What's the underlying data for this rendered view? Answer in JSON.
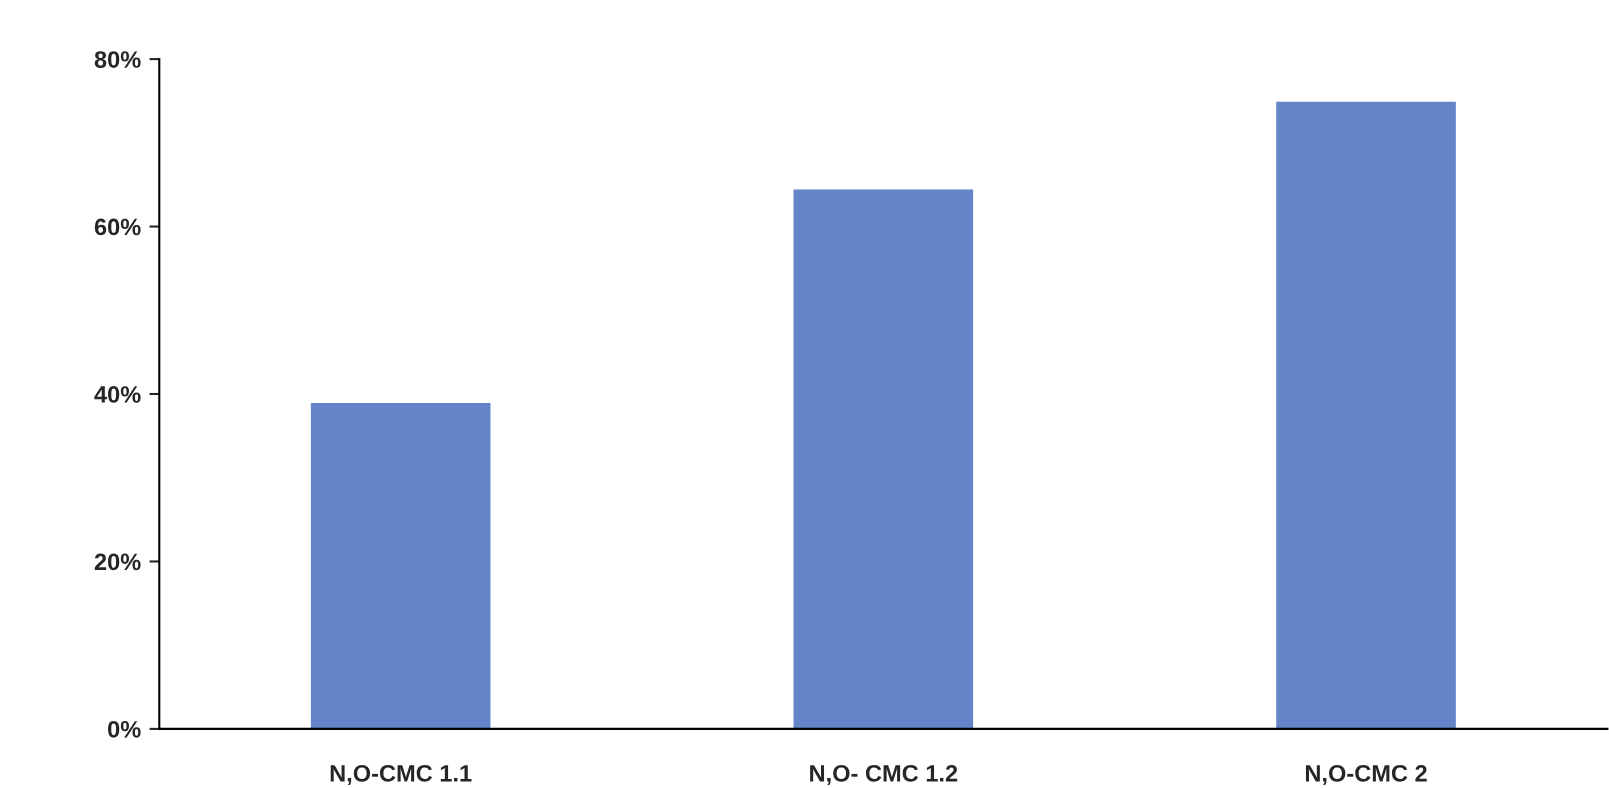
{
  "chart_data": {
    "type": "bar",
    "categories": [
      "N,O-CMC 1.1",
      "N,O- CMC 1.2",
      "N,O-CMC 2"
    ],
    "values": [
      39,
      64.5,
      75
    ],
    "color": "#6384c8",
    "ylim": [
      0,
      80
    ],
    "yticks": [
      {
        "value": 0,
        "label": "0%"
      },
      {
        "value": 20,
        "label": "20%"
      },
      {
        "value": 40,
        "label": "40%"
      },
      {
        "value": 60,
        "label": "60%"
      },
      {
        "value": 80,
        "label": "80%"
      }
    ],
    "grid": false
  }
}
